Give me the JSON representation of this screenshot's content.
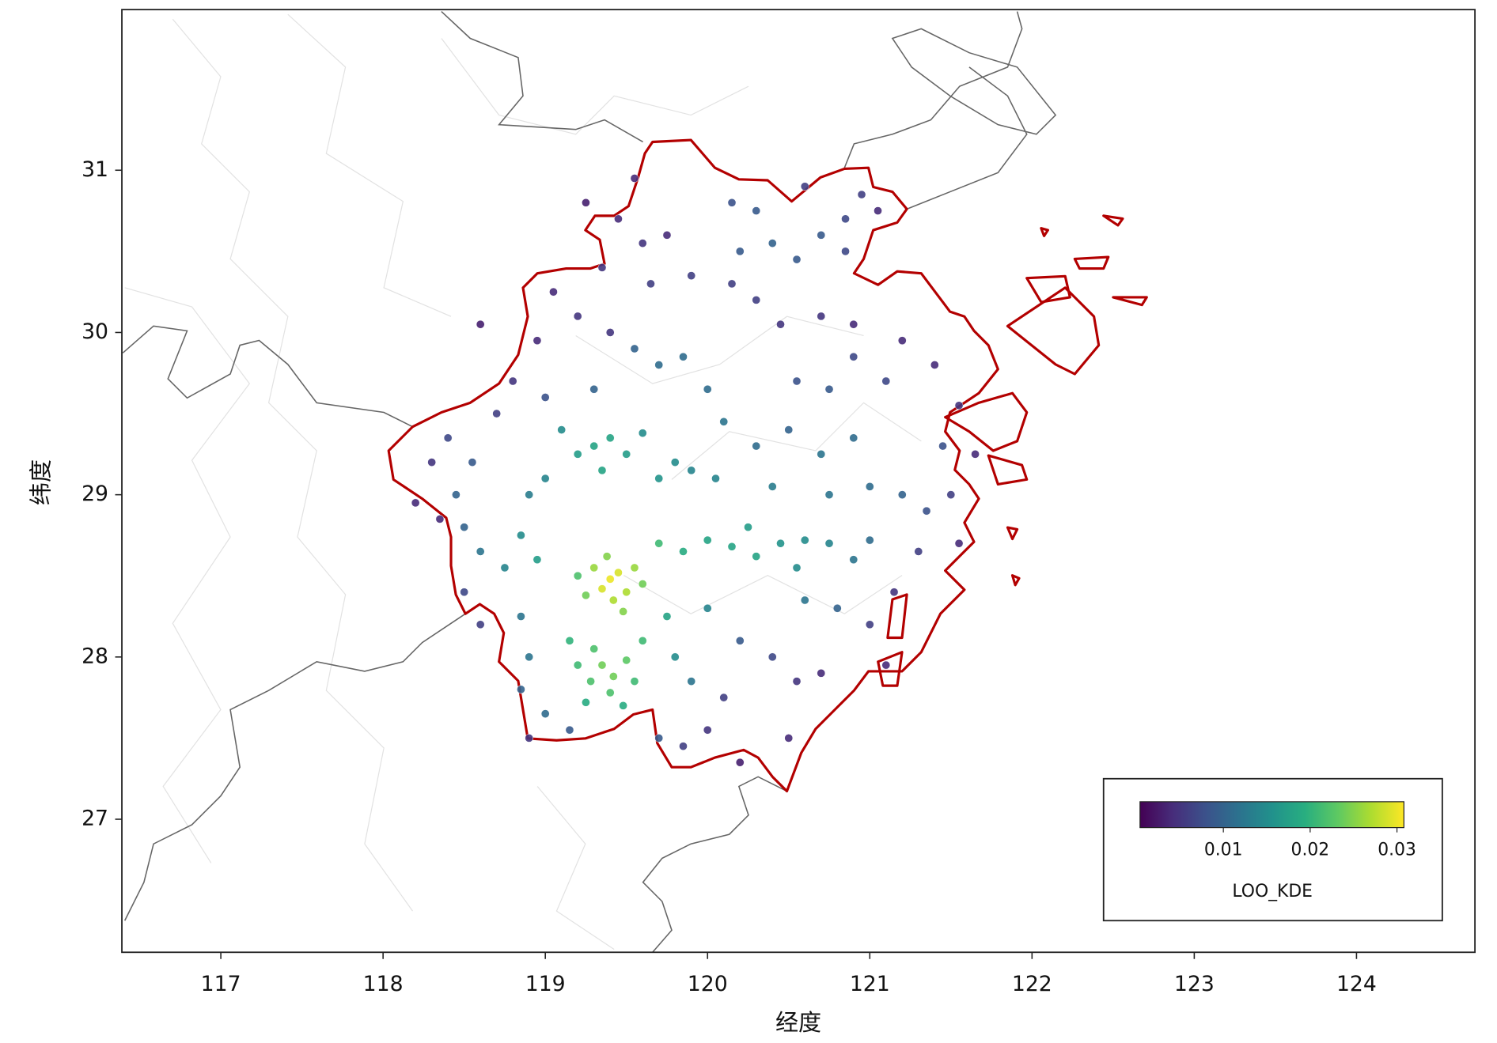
{
  "chart_data": {
    "type": "scatter",
    "xlabel": "经度",
    "ylabel": "纬度",
    "xlim": [
      116.39,
      124.73
    ],
    "ylim": [
      26.18,
      31.99
    ],
    "xticks": [
      117,
      118,
      119,
      120,
      121,
      122,
      123,
      124
    ],
    "yticks": [
      27,
      28,
      29,
      30,
      31
    ],
    "colormap": "viridis",
    "colorbar": {
      "label": "LOO_KDE",
      "clim": [
        0.0004,
        0.0308
      ],
      "ticks": [
        0.01,
        0.02,
        0.03
      ]
    },
    "x": [
      119.4,
      119.45,
      119.35,
      119.5,
      119.3,
      119.42,
      119.55,
      119.25,
      119.6,
      119.38,
      119.2,
      119.48,
      119.35,
      119.42,
      119.28,
      119.5,
      119.2,
      119.4,
      119.55,
      119.3,
      119.15,
      119.6,
      119.25,
      119.48,
      119.7,
      119.85,
      120.0,
      120.15,
      120.3,
      120.45,
      120.6,
      120.75,
      120.9,
      121.0,
      120.25,
      120.55,
      119.3,
      119.4,
      119.2,
      119.5,
      119.35,
      119.1,
      119.6,
      119.7,
      119.8,
      119.9,
      119.0,
      118.9,
      118.85,
      118.95,
      118.75,
      118.6,
      118.5,
      118.45,
      118.55,
      118.4,
      118.3,
      118.2,
      118.5,
      118.6,
      118.85,
      118.9,
      118.85,
      119.0,
      119.15,
      118.9,
      119.7,
      119.85,
      120.0,
      120.1,
      119.9,
      119.8,
      119.75,
      120.0,
      120.2,
      120.4,
      120.55,
      120.5,
      120.7,
      120.8,
      120.6,
      121.0,
      121.15,
      121.3,
      121.35,
      121.2,
      121.5,
      121.45,
      121.55,
      121.4,
      121.2,
      121.1,
      120.9,
      120.75,
      120.55,
      120.9,
      120.7,
      120.5,
      120.3,
      120.1,
      120.0,
      119.85,
      119.7,
      119.55,
      120.05,
      120.4,
      120.75,
      121.0,
      119.2,
      119.05,
      118.95,
      119.4,
      119.65,
      119.35,
      119.6,
      119.75,
      119.45,
      119.9,
      120.15,
      120.3,
      120.45,
      120.7,
      120.9,
      120.2,
      120.4,
      120.3,
      120.15,
      120.55,
      120.7,
      120.85,
      120.95,
      120.6,
      120.85,
      121.05,
      119.25,
      119.55,
      118.35,
      118.7,
      118.8,
      118.6,
      119.0,
      119.3,
      121.65,
      121.55,
      121.1,
      120.2
    ],
    "y": [
      28.48,
      28.52,
      28.42,
      28.4,
      28.55,
      28.35,
      28.55,
      28.38,
      28.45,
      28.62,
      28.5,
      28.28,
      27.95,
      27.88,
      27.85,
      27.98,
      27.95,
      27.78,
      27.85,
      28.05,
      28.1,
      28.1,
      27.72,
      27.7,
      28.7,
      28.65,
      28.72,
      28.68,
      28.62,
      28.7,
      28.72,
      28.7,
      28.6,
      28.72,
      28.8,
      28.55,
      29.3,
      29.35,
      29.25,
      29.25,
      29.15,
      29.4,
      29.38,
      29.1,
      29.2,
      29.15,
      29.1,
      29.0,
      28.75,
      28.6,
      28.55,
      28.65,
      28.8,
      29.0,
      29.2,
      29.35,
      29.2,
      28.95,
      28.4,
      28.2,
      28.25,
      28.0,
      27.8,
      27.65,
      27.55,
      27.5,
      27.5,
      27.45,
      27.55,
      27.75,
      27.85,
      28.0,
      28.25,
      28.3,
      28.1,
      28.0,
      27.85,
      27.5,
      27.9,
      28.3,
      28.35,
      28.2,
      28.4,
      28.65,
      28.9,
      29.0,
      29.0,
      29.3,
      29.55,
      29.8,
      29.95,
      29.7,
      29.85,
      29.65,
      29.7,
      29.35,
      29.25,
      29.4,
      29.3,
      29.45,
      29.65,
      29.85,
      29.8,
      29.9,
      29.1,
      29.05,
      29.0,
      29.05,
      30.1,
      30.25,
      29.95,
      30.0,
      30.3,
      30.4,
      30.55,
      30.6,
      30.7,
      30.35,
      30.3,
      30.2,
      30.05,
      30.1,
      30.05,
      30.5,
      30.55,
      30.75,
      30.8,
      30.45,
      30.6,
      30.7,
      30.85,
      30.9,
      30.5,
      30.75,
      30.8,
      30.95,
      28.85,
      29.5,
      29.7,
      30.05,
      29.6,
      29.65,
      29.25,
      28.7,
      27.95,
      27.35
    ],
    "c": [
      0.03,
      0.029,
      0.029,
      0.027,
      0.026,
      0.027,
      0.026,
      0.024,
      0.024,
      0.025,
      0.022,
      0.025,
      0.024,
      0.024,
      0.022,
      0.023,
      0.021,
      0.022,
      0.021,
      0.022,
      0.02,
      0.021,
      0.019,
      0.019,
      0.021,
      0.019,
      0.018,
      0.018,
      0.018,
      0.016,
      0.015,
      0.014,
      0.012,
      0.011,
      0.017,
      0.015,
      0.018,
      0.018,
      0.017,
      0.017,
      0.018,
      0.015,
      0.015,
      0.016,
      0.015,
      0.014,
      0.014,
      0.013,
      0.015,
      0.017,
      0.014,
      0.012,
      0.01,
      0.01,
      0.009,
      0.007,
      0.005,
      0.004,
      0.007,
      0.006,
      0.012,
      0.012,
      0.01,
      0.011,
      0.009,
      0.005,
      0.009,
      0.006,
      0.005,
      0.006,
      0.012,
      0.015,
      0.018,
      0.014,
      0.009,
      0.007,
      0.005,
      0.004,
      0.004,
      0.01,
      0.012,
      0.006,
      0.005,
      0.006,
      0.008,
      0.01,
      0.006,
      0.008,
      0.005,
      0.004,
      0.004,
      0.007,
      0.007,
      0.009,
      0.008,
      0.011,
      0.012,
      0.01,
      0.011,
      0.012,
      0.011,
      0.011,
      0.011,
      0.01,
      0.014,
      0.013,
      0.012,
      0.011,
      0.005,
      0.004,
      0.004,
      0.005,
      0.006,
      0.005,
      0.005,
      0.004,
      0.004,
      0.006,
      0.006,
      0.006,
      0.005,
      0.005,
      0.004,
      0.009,
      0.01,
      0.009,
      0.008,
      0.009,
      0.009,
      0.007,
      0.006,
      0.006,
      0.007,
      0.004,
      0.003,
      0.004,
      0.004,
      0.006,
      0.005,
      0.003,
      0.008,
      0.01,
      0.004,
      0.004,
      0.004,
      0.003
    ]
  }
}
